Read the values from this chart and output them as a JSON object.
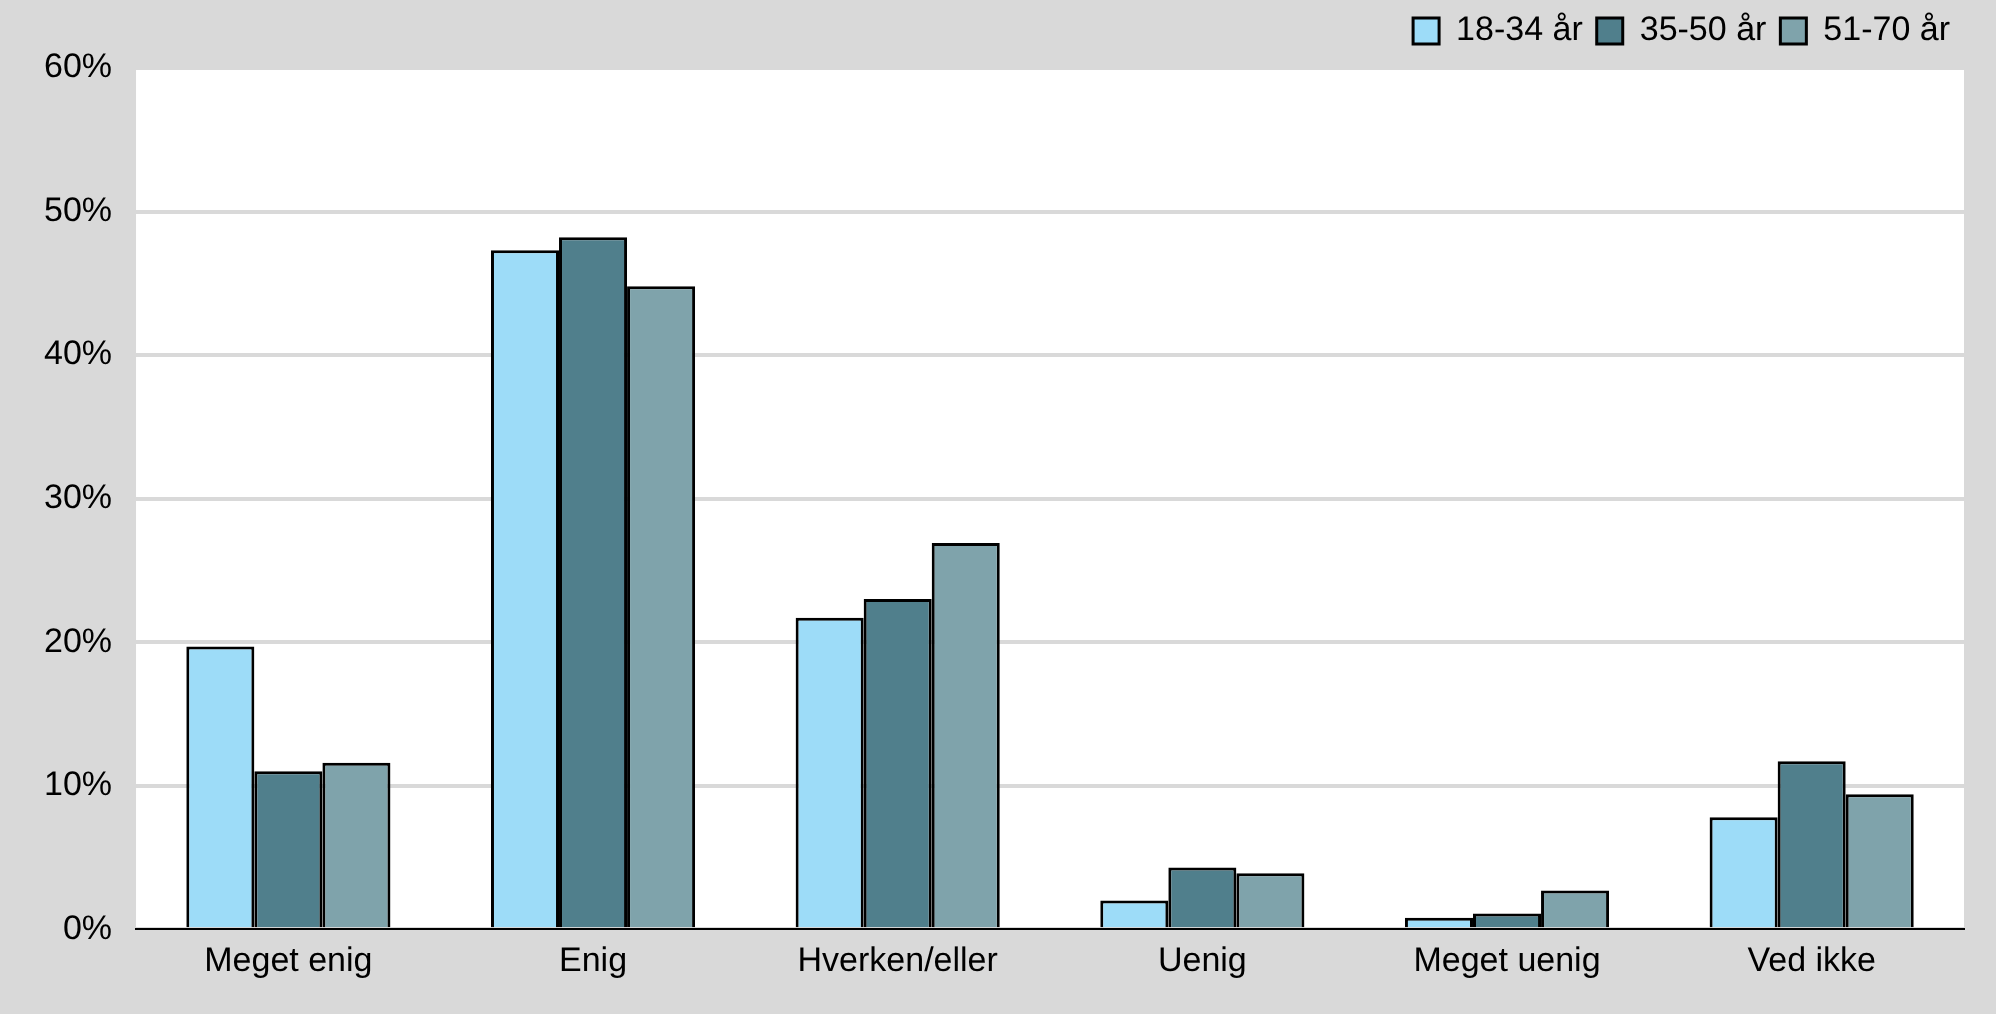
{
  "chart_data": {
    "type": "bar",
    "categories": [
      "Meget enig",
      "Enig",
      "Hverken/eller",
      "Uenig",
      "Meget uenig",
      "Ved ikke"
    ],
    "series": [
      {
        "name": "18-34 år",
        "color": "#9ddcf8",
        "values": [
          19.7,
          47.3,
          21.7,
          2.0,
          0.8,
          7.8
        ]
      },
      {
        "name": "35-50 år",
        "color": "#507f8c",
        "values": [
          11.0,
          48.2,
          23.0,
          4.3,
          1.1,
          11.7
        ]
      },
      {
        "name": "51-70 år",
        "color": "#7fa3ab",
        "values": [
          11.6,
          44.8,
          26.9,
          3.9,
          2.7,
          9.4
        ]
      }
    ],
    "ylim": [
      0,
      60
    ],
    "yticks": [
      {
        "value": 0,
        "label": "0%"
      },
      {
        "value": 10,
        "label": "10%"
      },
      {
        "value": 20,
        "label": "20%"
      },
      {
        "value": 30,
        "label": "30%"
      },
      {
        "value": 40,
        "label": "40%"
      },
      {
        "value": 50,
        "label": "50%"
      },
      {
        "value": 60,
        "label": "60%"
      }
    ],
    "grid": "y",
    "legend": "top right"
  }
}
